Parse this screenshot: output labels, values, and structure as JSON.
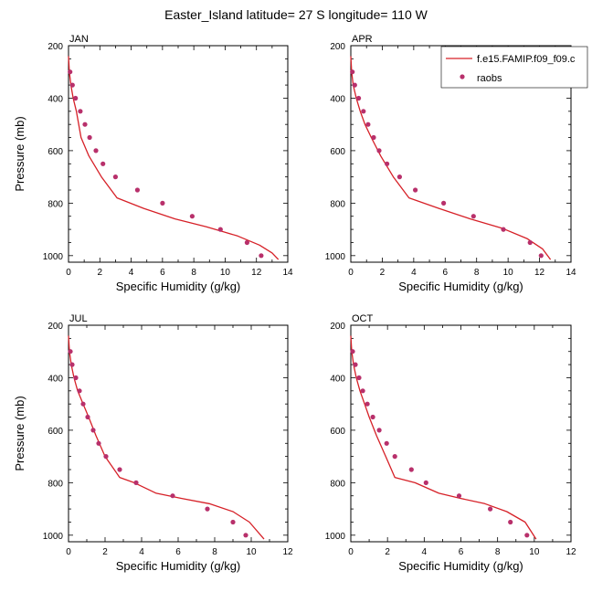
{
  "title": "Easter_Island  latitude= 27 S longitude= 110 W",
  "colors": {
    "model": "#d62027",
    "obs": "#b8306b"
  },
  "legend": {
    "model_label": "f.e15.FAMIP.f09_f09.c",
    "obs_label": "raobs"
  },
  "chart_data": [
    {
      "type": "line",
      "panel": "JAN",
      "title": "JAN",
      "xlabel": "Specific Humidity (g/kg)",
      "ylabel": "Pressure (mb)",
      "xlim": [
        0,
        14
      ],
      "xticks": [
        0,
        2,
        4,
        6,
        8,
        10,
        12,
        14
      ],
      "ylim": [
        200,
        1025
      ],
      "yticks": [
        200,
        400,
        600,
        800,
        1000
      ],
      "y_reversed": true,
      "series": [
        {
          "name": "f.e15.FAMIP.f09_f09.c",
          "kind": "line",
          "x": [
            0.0,
            0.05,
            0.15,
            0.3,
            0.5,
            0.8,
            1.3,
            2.1,
            3.1,
            4.8,
            6.8,
            8.8,
            10.8,
            12.2,
            13.0,
            13.4
          ],
          "y": [
            240,
            300,
            350,
            400,
            450,
            550,
            620,
            700,
            780,
            820,
            860,
            890,
            925,
            960,
            990,
            1015
          ]
        },
        {
          "name": "raobs",
          "kind": "scatter",
          "x": [
            0.1,
            0.25,
            0.45,
            0.75,
            1.05,
            1.35,
            1.75,
            2.2,
            3.0,
            4.4,
            6.0,
            7.9,
            9.7,
            11.4,
            12.3
          ],
          "y": [
            300,
            350,
            400,
            450,
            500,
            550,
            600,
            650,
            700,
            750,
            800,
            850,
            900,
            950,
            1000
          ]
        }
      ]
    },
    {
      "type": "line",
      "panel": "APR",
      "title": "APR",
      "xlabel": "Specific Humidity (g/kg)",
      "ylabel": "",
      "xlim": [
        0,
        14
      ],
      "xticks": [
        0,
        2,
        4,
        6,
        8,
        10,
        12,
        14
      ],
      "ylim": [
        200,
        1025
      ],
      "yticks": [
        200,
        400,
        600,
        800,
        1000
      ],
      "y_reversed": true,
      "series": [
        {
          "name": "f.e15.FAMIP.f09_f09.c",
          "kind": "line",
          "x": [
            0.0,
            0.05,
            0.15,
            0.35,
            0.6,
            0.9,
            1.3,
            1.9,
            2.7,
            3.7,
            5.6,
            7.6,
            9.6,
            11.2,
            12.2,
            12.7
          ],
          "y": [
            240,
            300,
            350,
            400,
            450,
            500,
            550,
            620,
            700,
            780,
            820,
            860,
            895,
            935,
            975,
            1015
          ]
        },
        {
          "name": "raobs",
          "kind": "scatter",
          "x": [
            0.1,
            0.25,
            0.5,
            0.8,
            1.1,
            1.45,
            1.8,
            2.3,
            3.1,
            4.1,
            5.9,
            7.8,
            9.7,
            11.4,
            12.1
          ],
          "y": [
            300,
            350,
            400,
            450,
            500,
            550,
            600,
            650,
            700,
            750,
            800,
            850,
            900,
            950,
            1000
          ]
        }
      ]
    },
    {
      "type": "line",
      "panel": "JUL",
      "title": "JUL",
      "xlabel": "Specific Humidity (g/kg)",
      "ylabel": "Pressure (mb)",
      "xlim": [
        0,
        12
      ],
      "xticks": [
        0,
        2,
        4,
        6,
        8,
        10,
        12
      ],
      "ylim": [
        200,
        1025
      ],
      "yticks": [
        200,
        400,
        600,
        800,
        1000
      ],
      "y_reversed": true,
      "series": [
        {
          "name": "f.e15.FAMIP.f09_f09.c",
          "kind": "line",
          "x": [
            0.0,
            0.05,
            0.15,
            0.3,
            0.5,
            0.8,
            1.1,
            1.5,
            2.0,
            2.8,
            3.6,
            4.8,
            6.2,
            7.7,
            9.0,
            9.9,
            10.7
          ],
          "y": [
            240,
            300,
            350,
            400,
            450,
            500,
            550,
            620,
            700,
            780,
            800,
            840,
            860,
            880,
            910,
            950,
            1015
          ]
        },
        {
          "name": "raobs",
          "kind": "scatter",
          "x": [
            0.1,
            0.2,
            0.4,
            0.6,
            0.8,
            1.05,
            1.35,
            1.65,
            2.05,
            2.8,
            3.7,
            5.7,
            7.6,
            9.0,
            9.7
          ],
          "y": [
            300,
            350,
            400,
            450,
            500,
            550,
            600,
            650,
            700,
            750,
            800,
            850,
            900,
            950,
            1000
          ]
        }
      ]
    },
    {
      "type": "line",
      "panel": "OCT",
      "title": "OCT",
      "xlabel": "Specific Humidity (g/kg)",
      "ylabel": "",
      "xlim": [
        0,
        12
      ],
      "xticks": [
        0,
        2,
        4,
        6,
        8,
        10,
        12
      ],
      "ylim": [
        200,
        1025
      ],
      "yticks": [
        200,
        400,
        600,
        800,
        1000
      ],
      "y_reversed": true,
      "series": [
        {
          "name": "f.e15.FAMIP.f09_f09.c",
          "kind": "line",
          "x": [
            0.0,
            0.05,
            0.15,
            0.3,
            0.5,
            0.75,
            1.0,
            1.4,
            1.9,
            2.4,
            3.5,
            4.8,
            6.0,
            7.3,
            8.5,
            9.5,
            10.1
          ],
          "y": [
            240,
            300,
            350,
            400,
            450,
            500,
            550,
            620,
            700,
            780,
            800,
            840,
            860,
            880,
            910,
            950,
            1015
          ]
        },
        {
          "name": "raobs",
          "kind": "scatter",
          "x": [
            0.1,
            0.25,
            0.45,
            0.65,
            0.9,
            1.2,
            1.55,
            1.95,
            2.4,
            3.3,
            4.1,
            5.9,
            7.6,
            8.7,
            9.6
          ],
          "y": [
            300,
            350,
            400,
            450,
            500,
            550,
            600,
            650,
            700,
            750,
            800,
            850,
            900,
            950,
            1000
          ]
        }
      ]
    }
  ]
}
